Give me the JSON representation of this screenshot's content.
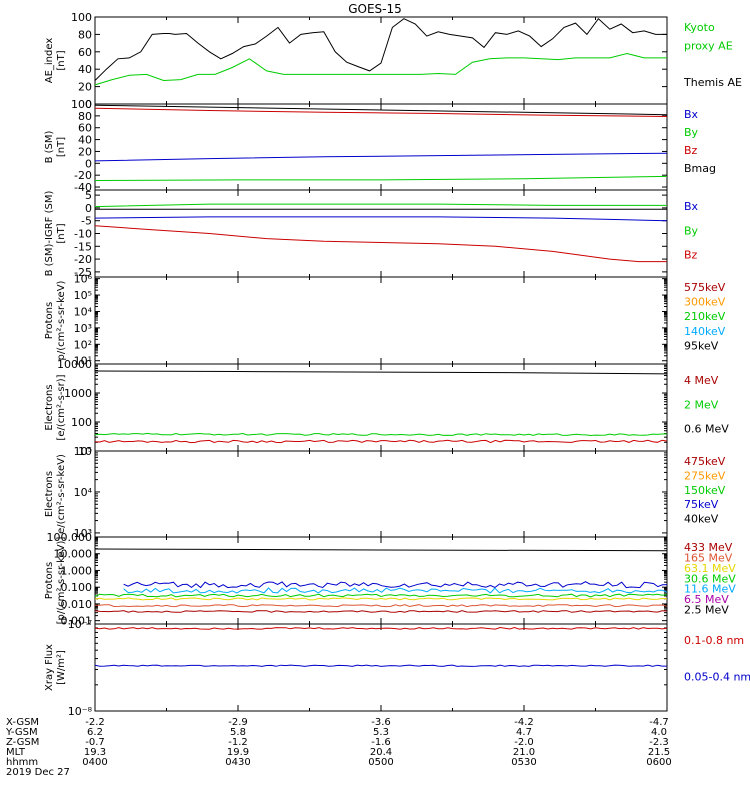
{
  "title": "GOES-15",
  "colors": {
    "black": "#000000",
    "red": "#cc0000",
    "green": "#00cc00",
    "blue": "#0000cc",
    "orange": "#ff9900",
    "yellow": "#e6d800",
    "cyan": "#00aaff",
    "violet": "#6600cc",
    "purple": "#aa00aa",
    "darkred": "#aa0000",
    "salmon": "#dd5533"
  },
  "chart_data": [
    {
      "type": "line",
      "ylabel": "AE_index\n[nT]",
      "ylim": [
        0,
        100
      ],
      "yticks": [
        "0",
        "20",
        "40",
        "60",
        "80",
        "100"
      ],
      "yscale": "linear",
      "legend": [
        {
          "text": "Kyoto",
          "color": "green"
        },
        {
          "text": "proxy AE",
          "color": "green"
        },
        {
          "text": "",
          "color": "black"
        },
        {
          "text": "Themis AE",
          "color": "black"
        }
      ],
      "series": [
        {
          "color": "black",
          "x": [
            0,
            0.02,
            0.04,
            0.06,
            0.08,
            0.1,
            0.12,
            0.13,
            0.14,
            0.16,
            0.18,
            0.2,
            0.22,
            0.24,
            0.26,
            0.28,
            0.3,
            0.32,
            0.34,
            0.36,
            0.38,
            0.4,
            0.42,
            0.44,
            0.46,
            0.48,
            0.5,
            0.52,
            0.54,
            0.56,
            0.58,
            0.6,
            0.62,
            0.64,
            0.66,
            0.68,
            0.7,
            0.72,
            0.74,
            0.76,
            0.78,
            0.8,
            0.82,
            0.84,
            0.86,
            0.88,
            0.9,
            0.92,
            0.94,
            0.96,
            0.98,
            1.0
          ],
          "values": [
            27,
            40,
            52,
            53,
            60,
            80,
            81,
            81,
            80,
            81,
            70,
            60,
            52,
            58,
            66,
            69,
            78,
            88,
            70,
            80,
            82,
            83,
            60,
            48,
            43,
            38,
            47,
            88,
            98,
            92,
            78,
            83,
            80,
            78,
            76,
            65,
            82,
            80,
            84,
            78,
            66,
            75,
            88,
            93,
            80,
            98,
            86,
            92,
            82,
            84,
            80,
            80
          ]
        },
        {
          "color": "green",
          "x": [
            0,
            0.03,
            0.06,
            0.09,
            0.12,
            0.15,
            0.18,
            0.21,
            0.24,
            0.27,
            0.3,
            0.33,
            0.36,
            0.39,
            0.42,
            0.45,
            0.48,
            0.51,
            0.54,
            0.57,
            0.6,
            0.63,
            0.66,
            0.69,
            0.72,
            0.75,
            0.78,
            0.81,
            0.84,
            0.87,
            0.9,
            0.93,
            0.96,
            1.0
          ],
          "values": [
            22,
            28,
            33,
            34,
            27,
            28,
            34,
            34,
            42,
            52,
            38,
            34,
            34,
            34,
            34,
            34,
            34,
            34,
            34,
            34,
            35,
            34,
            48,
            52,
            53,
            53,
            52,
            51,
            53,
            53,
            53,
            58,
            53,
            53
          ]
        }
      ]
    },
    {
      "type": "line",
      "ylabel": "B (SM)\n[nT]",
      "ylim": [
        -45,
        100
      ],
      "yticks": [
        "-40",
        "-20",
        "0",
        "20",
        "40",
        "60",
        "80",
        "100"
      ],
      "yscale": "linear",
      "legend": [
        {
          "text": "Bx",
          "color": "blue"
        },
        {
          "text": "By",
          "color": "green"
        },
        {
          "text": "Bz",
          "color": "red"
        },
        {
          "text": "Bmag",
          "color": "black"
        }
      ],
      "series": [
        {
          "color": "black",
          "x": [
            0,
            1
          ],
          "values": [
            98,
            82
          ]
        },
        {
          "color": "red",
          "x": [
            0,
            0.2,
            0.4,
            0.6,
            0.8,
            1
          ],
          "values": [
            93,
            89,
            86,
            84,
            81,
            79
          ]
        },
        {
          "color": "blue",
          "x": [
            0,
            0.2,
            0.4,
            0.6,
            0.8,
            1
          ],
          "values": [
            4,
            8,
            11,
            13,
            15,
            17
          ]
        },
        {
          "color": "green",
          "x": [
            0,
            0.25,
            0.5,
            0.75,
            1
          ],
          "values": [
            -29,
            -28,
            -28,
            -26,
            -22
          ]
        }
      ]
    },
    {
      "type": "line",
      "ylabel": "B (SM)-IGRF (SM)\n[nT]",
      "ylim": [
        -27,
        7
      ],
      "yticks": [
        "-25",
        "-20",
        "-15",
        "-10",
        "-5",
        "0",
        "5"
      ],
      "yscale": "linear",
      "legend": [
        {
          "text": "Bx",
          "color": "blue"
        },
        {
          "text": "By",
          "color": "green"
        },
        {
          "text": "Bz",
          "color": "red"
        }
      ],
      "series": [
        {
          "color": "black",
          "x": [
            0,
            1
          ],
          "values": [
            -0.5,
            -0.5
          ]
        },
        {
          "color": "green",
          "x": [
            0,
            0.2,
            0.4,
            0.6,
            0.8,
            1
          ],
          "values": [
            0.5,
            1.5,
            1.5,
            1.5,
            1,
            1
          ]
        },
        {
          "color": "blue",
          "x": [
            0,
            0.2,
            0.4,
            0.6,
            0.8,
            0.9,
            1
          ],
          "values": [
            -4,
            -3.5,
            -3.5,
            -3.5,
            -4,
            -4.5,
            -5
          ]
        },
        {
          "color": "red",
          "x": [
            0,
            0.1,
            0.2,
            0.3,
            0.4,
            0.5,
            0.6,
            0.7,
            0.8,
            0.9,
            0.95,
            1
          ],
          "values": [
            -7,
            -8.5,
            -10,
            -12,
            -13,
            -13.5,
            -14,
            -15,
            -17,
            -20,
            -21,
            -21
          ]
        }
      ]
    },
    {
      "type": "line",
      "ylabel": "Protons\np/(cm²-s-sr-keV)",
      "ylim": [
        0.8,
        6.1
      ],
      "yticks": [
        "10¹",
        "10²",
        "10³",
        "10⁴",
        "10⁵",
        "10⁶"
      ],
      "yscale": "log",
      "legend": [
        {
          "text": "575keV",
          "color": "darkred"
        },
        {
          "text": "300keV",
          "color": "orange"
        },
        {
          "text": "210keV",
          "color": "green"
        },
        {
          "text": "140keV",
          "color": "cyan"
        },
        {
          "text": "95keV",
          "color": "black"
        }
      ],
      "series": []
    },
    {
      "type": "line",
      "ylabel": "Electrons\n[e/(cm²-s-sr)]",
      "ylim": [
        1.0,
        4.0
      ],
      "yticks": [
        "10",
        "100",
        "1000",
        "10000"
      ],
      "yscale": "log",
      "legend": [
        {
          "text": "4 MeV",
          "color": "darkred"
        },
        {
          "text": "2 MeV",
          "color": "green"
        },
        {
          "text": "0.6 MeV",
          "color": "black"
        }
      ],
      "series": [
        {
          "color": "black",
          "x": [
            0,
            0.25,
            0.5,
            0.75,
            1
          ],
          "values": [
            3.76,
            3.74,
            3.72,
            3.7,
            3.66
          ]
        },
        {
          "color": "green",
          "noise": 0.03,
          "x": [
            0,
            1
          ],
          "values": [
            1.58,
            1.56
          ]
        },
        {
          "color": "red",
          "noise": 0.04,
          "x": [
            0,
            1
          ],
          "values": [
            1.33,
            1.33
          ]
        }
      ]
    },
    {
      "type": "line",
      "ylabel": "Electrons\ne/(cm²-s-sr-keV)",
      "ylim": [
        2.9,
        5.0
      ],
      "yticks": [
        "10³",
        "10⁴",
        "10⁵"
      ],
      "yscale": "log",
      "legend": [
        {
          "text": "475keV",
          "color": "darkred"
        },
        {
          "text": "275keV",
          "color": "orange"
        },
        {
          "text": "150keV",
          "color": "green"
        },
        {
          "text": "75keV",
          "color": "blue"
        },
        {
          "text": "40keV",
          "color": "black"
        }
      ],
      "series": []
    },
    {
      "type": "line",
      "ylabel": "Protons\n[p/(cm²-s-sr-keV)]",
      "ylim": [
        -3.2,
        2.0
      ],
      "yticks": [
        "0.001",
        "0.010",
        "0.100",
        "1.000",
        "10.000",
        "100.000"
      ],
      "yscale": "log",
      "legend": [
        {
          "text": "433 MeV",
          "color": "darkred"
        },
        {
          "text": "165 MeV",
          "color": "salmon"
        },
        {
          "text": "63.1 MeV",
          "color": "yellow"
        },
        {
          "text": "30.6 MeV",
          "color": "green"
        },
        {
          "text": "11.6 MeV",
          "color": "cyan"
        },
        {
          "text": "6.5 MeV",
          "color": "purple"
        },
        {
          "text": "2.5 MeV",
          "color": "black"
        }
      ],
      "series": [
        {
          "color": "black",
          "x": [
            0,
            0.5,
            1
          ],
          "values": [
            1.28,
            1.22,
            1.18
          ]
        },
        {
          "color": "blue",
          "noise": 0.18,
          "x": [
            0.05,
            1
          ],
          "values": [
            -0.85,
            -0.85
          ]
        },
        {
          "color": "cyan",
          "noise": 0.15,
          "x": [
            0.05,
            1
          ],
          "values": [
            -1.2,
            -1.2
          ]
        },
        {
          "color": "green",
          "noise": 0.08,
          "x": [
            0,
            1
          ],
          "values": [
            -1.5,
            -1.5
          ]
        },
        {
          "color": "yellow",
          "noise": 0.06,
          "x": [
            0,
            1
          ],
          "values": [
            -1.7,
            -1.7
          ]
        },
        {
          "color": "salmon",
          "noise": 0.06,
          "x": [
            0,
            1
          ],
          "values": [
            -2.1,
            -2.1
          ]
        },
        {
          "color": "darkred",
          "noise": 0.05,
          "x": [
            0,
            1
          ],
          "values": [
            -2.45,
            -2.45
          ]
        }
      ]
    },
    {
      "type": "line",
      "ylabel": "Xray Flux\n[W/m²]",
      "ylim": [
        -8.0,
        -7.0
      ],
      "yticks": [
        "10⁻⁸",
        "10⁻⁷"
      ],
      "yscale": "log",
      "legend": [
        {
          "text": "0.1-0.8 nm",
          "color": "red"
        },
        {
          "text": "0.05-0.4 nm",
          "color": "blue"
        }
      ],
      "series": [
        {
          "color": "red",
          "noise": 0.01,
          "x": [
            0,
            1
          ],
          "values": [
            -7.05,
            -7.05
          ]
        },
        {
          "color": "blue",
          "noise": 0.008,
          "x": [
            0,
            1
          ],
          "values": [
            -7.48,
            -7.48
          ]
        }
      ]
    }
  ],
  "footer": {
    "rows": [
      "X-GSM",
      "Y-GSM",
      "Z-GSM",
      "MLT",
      "hhmm"
    ],
    "date": "2019 Dec 27",
    "columns": [
      [
        "-2.2",
        "6.2",
        "-0.7",
        "19.3",
        "0400"
      ],
      [
        "-2.9",
        "5.8",
        "-1.2",
        "19.9",
        "0430"
      ],
      [
        "-3.6",
        "5.3",
        "-1.6",
        "20.4",
        "0500"
      ],
      [
        "-4.2",
        "4.7",
        "-2.0",
        "21.0",
        "0530"
      ],
      [
        "-4.7",
        "4.0",
        "-2.3",
        "21.5",
        "0600"
      ]
    ]
  }
}
